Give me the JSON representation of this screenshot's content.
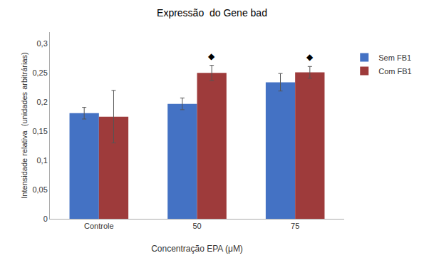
{
  "chart_data": {
    "type": "bar",
    "title": "Expressão  do Gene bad",
    "xlabel": "Concentração EPA (μM)",
    "ylabel": "Intensidade relativa  (unidades arbitrárias)",
    "categories": [
      "Controle",
      "50",
      "75"
    ],
    "series": [
      {
        "name": "Sem FB1",
        "color": "#4472C4",
        "values": [
          0.181,
          0.197,
          0.234
        ],
        "errors": [
          0.01,
          0.01,
          0.015
        ]
      },
      {
        "name": "Com FB1",
        "color": "#9E3B3B",
        "values": [
          0.175,
          0.25,
          0.251
        ],
        "errors": [
          0.045,
          0.013,
          0.01
        ]
      }
    ],
    "ylim": [
      0,
      0.32
    ],
    "yticks": [
      0,
      {
        "value": 0.05,
        "label": "0,05"
      },
      {
        "value": 0.1,
        "label": "0,1"
      },
      {
        "value": 0.15,
        "label": "0,15"
      },
      {
        "value": 0.2,
        "label": "0,2"
      },
      {
        "value": 0.25,
        "label": "0,25"
      },
      {
        "value": 0.3,
        "label": "0,3"
      }
    ],
    "annotations": [
      {
        "text": "◆",
        "category": "50",
        "series": "Com FB1"
      },
      {
        "text": "◆",
        "category": "75",
        "series": "Com FB1"
      }
    ],
    "grid": false,
    "legend": "upper right"
  }
}
